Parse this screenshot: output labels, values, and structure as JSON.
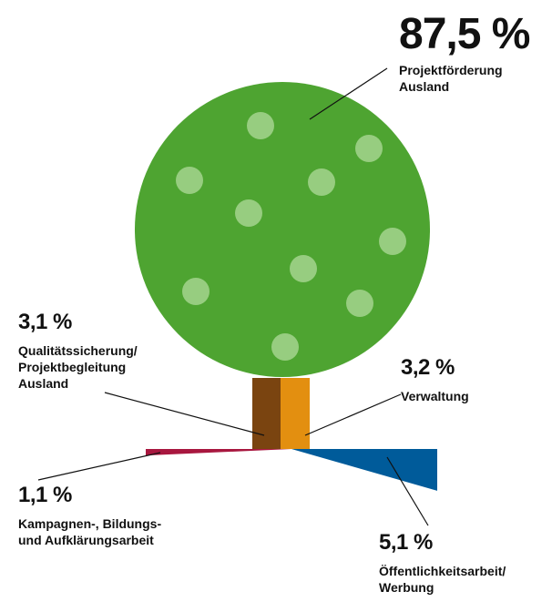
{
  "chart_data": {
    "type": "tree",
    "categories": [
      "Projektförderung\nAusland",
      "Qualitätssicherung/\nProjektbegleitung\nAusland",
      "Verwaltung",
      "Kampagnen-, Bildungs-\nund Aufklärungsarbeit",
      "Öffentlichkeitsarbeit/\nWerbung"
    ],
    "values": [
      87.5,
      3.1,
      3.2,
      1.1,
      5.1
    ],
    "value_labels": [
      "87,5 %",
      "3,1 %",
      "3,2 %",
      "1,1 %",
      "5,1 %"
    ],
    "colors": [
      "#4ea431",
      "#7a4410",
      "#e38f10",
      "#a8173f",
      "#005b9a"
    ]
  }
}
